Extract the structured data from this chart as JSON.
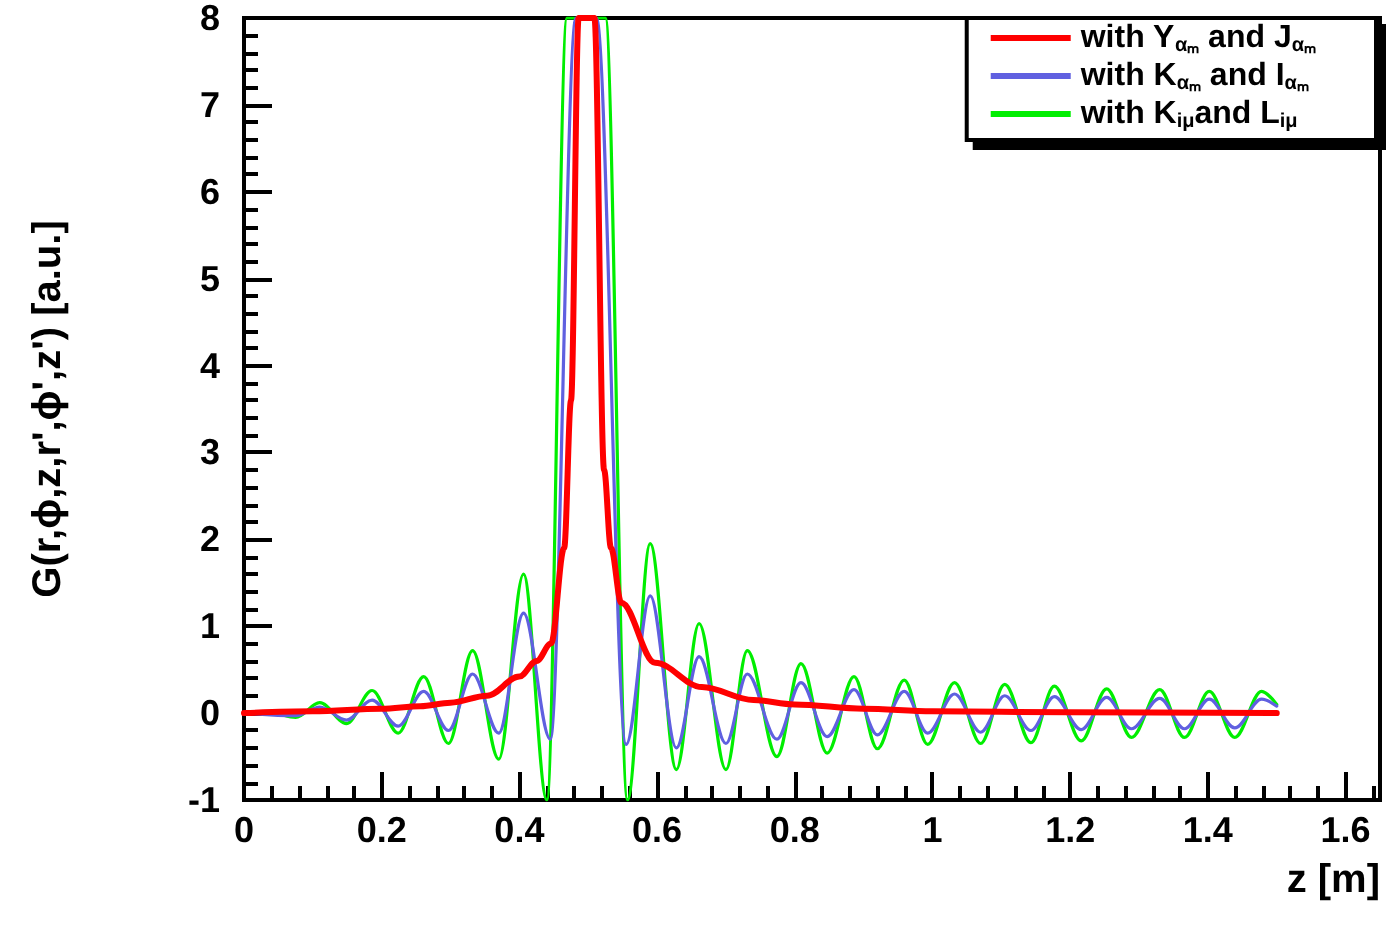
{
  "chart_data": {
    "type": "line",
    "xlabel": "z [m]",
    "ylabel": "G(r,ϕ,z,r',ϕ',z') [a.u.]",
    "xlim": [
      0,
      1.65
    ],
    "xticks": [
      0,
      0.2,
      0.4,
      0.6,
      0.8,
      1,
      1.2,
      1.4,
      1.6
    ],
    "ylim": [
      -1,
      8
    ],
    "yticks": [
      -1,
      0,
      1,
      2,
      3,
      4,
      5,
      6,
      7,
      8
    ],
    "grid": false,
    "legend": "top right",
    "marker": "none",
    "line_style": "solid",
    "series": [
      {
        "name": "with Y$_{αₘ}$ and J$_{αₘ}$",
        "color": "#ff0000",
        "x": [
          0,
          0.1,
          0.2,
          0.256,
          0.3,
          0.353,
          0.4,
          0.425,
          0.446,
          0.465,
          0.475,
          0.486,
          0.509,
          0.523,
          0.533,
          0.548,
          0.597,
          0.665,
          0.74,
          0.8,
          0.9,
          1,
          1.2,
          1.5
        ],
        "values": [
          0,
          0.02,
          0.05,
          0.08,
          0.12,
          0.2,
          0.42,
          0.6,
          0.8,
          1.9,
          3.6,
          8,
          8,
          2.8,
          1.9,
          1.27,
          0.58,
          0.3,
          0.15,
          0.1,
          0.05,
          0.02,
          0.01,
          0
        ]
      },
      {
        "name": "with K$_{αₘ}$ and I$_{αₘ}$",
        "color": "#6060e0",
        "x": [
          0,
          0.075,
          0.11,
          0.149,
          0.186,
          0.224,
          0.261,
          0.297,
          0.332,
          0.37,
          0.406,
          0.445,
          0.482,
          0.512,
          0.555,
          0.59,
          0.628,
          0.661,
          0.7,
          0.731,
          0.774,
          0.809,
          0.847,
          0.886,
          0.92,
          0.959,
          0.993,
          1.032,
          1.07,
          1.105,
          1.143,
          1.177,
          1.216,
          1.253,
          1.289,
          1.33,
          1.366,
          1.402,
          1.439,
          1.478,
          1.5
        ],
        "values": [
          0,
          -0.03,
          0.07,
          -0.08,
          0.15,
          -0.15,
          0.25,
          -0.2,
          0.45,
          -0.23,
          1.15,
          -0.3,
          8,
          8,
          -0.36,
          1.35,
          -0.4,
          0.65,
          -0.35,
          0.45,
          -0.3,
          0.35,
          -0.27,
          0.27,
          -0.25,
          0.25,
          -0.23,
          0.22,
          -0.22,
          0.2,
          -0.2,
          0.19,
          -0.19,
          0.18,
          -0.18,
          0.17,
          -0.18,
          0.16,
          -0.17,
          0.16,
          0.08
        ]
      },
      {
        "name": "with K$_{iμ}$and L$_{iμ}$",
        "color": "#00ee00",
        "x": [
          0,
          0.04,
          0.075,
          0.11,
          0.149,
          0.186,
          0.224,
          0.261,
          0.297,
          0.332,
          0.37,
          0.406,
          0.44,
          0.469,
          0.525,
          0.557,
          0.59,
          0.628,
          0.661,
          0.7,
          0.731,
          0.774,
          0.809,
          0.847,
          0.886,
          0.92,
          0.959,
          0.993,
          1.032,
          1.07,
          1.105,
          1.143,
          1.177,
          1.216,
          1.253,
          1.289,
          1.33,
          1.366,
          1.402,
          1.439,
          1.478,
          1.5
        ],
        "values": [
          0,
          0,
          -0.05,
          0.12,
          -0.12,
          0.26,
          -0.23,
          0.42,
          -0.35,
          0.72,
          -0.53,
          1.6,
          -1,
          8,
          8,
          -1,
          1.95,
          -0.65,
          1.03,
          -0.65,
          0.72,
          -0.5,
          0.57,
          -0.46,
          0.42,
          -0.41,
          0.38,
          -0.36,
          0.35,
          -0.35,
          0.33,
          -0.34,
          0.31,
          -0.32,
          0.28,
          -0.28,
          0.27,
          -0.28,
          0.25,
          -0.28,
          0.25,
          0.1
        ]
      }
    ]
  }
}
